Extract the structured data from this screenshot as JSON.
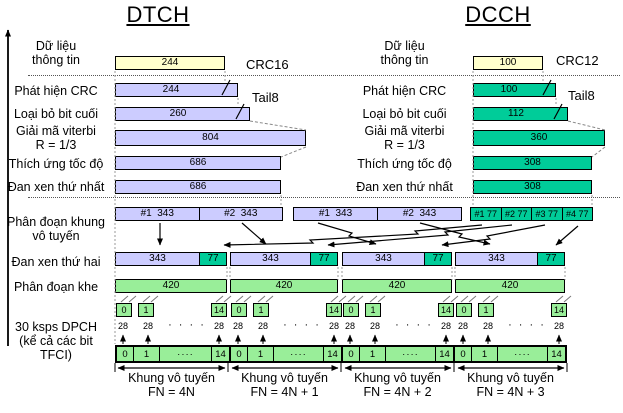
{
  "titles": {
    "dtch": "DTCH",
    "dcch": "DCCH"
  },
  "rows": {
    "info_l1": "Dữ liệu",
    "info_l2": "thông tin",
    "crc": "Phát hiện CRC",
    "tail": "Loại bỏ bit cuối",
    "viterbi_l1": "Giải mã viterbi",
    "viterbi_l2": "R = 1/3",
    "rate": "Thích ứng tốc độ",
    "il1": "Đan xen thứ nhất",
    "seg_l1": "Phân đoạn khung",
    "seg_l2": "vô tuyến",
    "il2": "Đan xen thứ hai",
    "slotseg": "Phân đoạn khe",
    "dpch_l1": "30 ksps DPCH",
    "dpch_l2": "(kể cả các bit",
    "dpch_l3": "TFCI)"
  },
  "dtch": {
    "info": "244",
    "crc": "244",
    "tail": "260",
    "viterbi": "804",
    "rate": "686",
    "il1": "686",
    "crc_tag": "CRC16",
    "tail_tag": "Tail8",
    "seg": [
      "#1  343",
      "#2  343",
      "#1  343",
      "#2  343"
    ]
  },
  "dcch": {
    "info": "100",
    "crc": "100",
    "tail": "112",
    "viterbi": "360",
    "rate": "308",
    "il1": "308",
    "crc_tag": "CRC12",
    "tail_tag": "Tail8",
    "seg": [
      "#1 77",
      "#2 77",
      "#3 77",
      "#4 77"
    ]
  },
  "frames": {
    "il2_data": "343",
    "il2_ctrl": "77",
    "slot_bits": "420",
    "bits_per_slot": "28",
    "dots": "· · · ·",
    "slot_cells": [
      "0",
      "1",
      "····",
      "14"
    ],
    "box_labels": [
      "0",
      "1",
      "14"
    ],
    "frame_captions": [
      {
        "line1": "Khung vô tuyến",
        "line2": "FN = 4N"
      },
      {
        "line1": "Khung vô tuyến",
        "line2": "FN = 4N + 1"
      },
      {
        "line1": "Khung vô tuyến",
        "line2": "FN = 4N + 2"
      },
      {
        "line1": "Khung vô tuyến",
        "line2": "FN = 4N + 3"
      }
    ]
  },
  "colors": {
    "data_fill": "#ffffcc",
    "dtch_fill": "#ccccff",
    "dcch_fill": "#00cc99",
    "frame_fill": "#99ee99"
  }
}
